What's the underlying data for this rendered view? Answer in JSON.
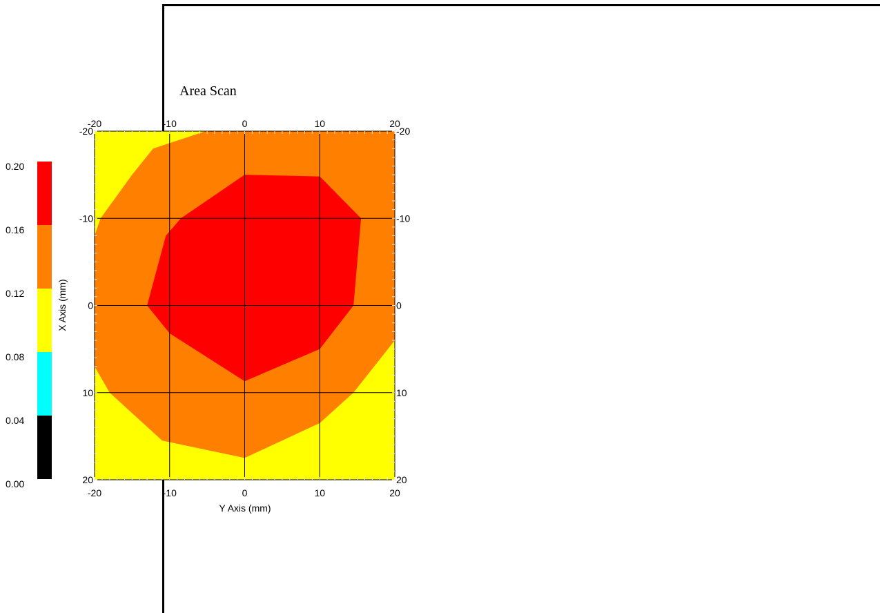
{
  "chart_data": {
    "type": "heatmap",
    "title": "Area Scan",
    "xlabel": "Y Axis (mm)",
    "ylabel": "X Axis (mm)",
    "x_range": [
      -20,
      20
    ],
    "y_range": [
      -20,
      20
    ],
    "x_ticks": [
      "-20",
      "-10",
      "0",
      "10",
      "20"
    ],
    "y_ticks": [
      "-20",
      "-10",
      "0",
      "10",
      "20"
    ],
    "grid": true,
    "legend": {
      "placement": "left",
      "ticks": [
        "0.20",
        "0.16",
        "0.12",
        "0.08",
        "0.04",
        "0.00"
      ],
      "bands": [
        {
          "from": 0.0,
          "to": 0.04,
          "color": "#000000"
        },
        {
          "from": 0.04,
          "to": 0.08,
          "color": "#00ffff"
        },
        {
          "from": 0.08,
          "to": 0.12,
          "color": "#ffff00"
        },
        {
          "from": 0.12,
          "to": 0.16,
          "color": "#ff8000"
        },
        {
          "from": 0.16,
          "to": 0.2,
          "color": "#ff0000"
        }
      ]
    },
    "background_color": "#ffff00",
    "contours": [
      {
        "level": 0.12,
        "color": "#ff8000",
        "points": [
          [
            -5.2,
            -20
          ],
          [
            -12.2,
            -18
          ],
          [
            -15,
            -15
          ],
          [
            -19.2,
            -10
          ],
          [
            -20,
            -8
          ],
          [
            -20,
            7
          ],
          [
            -18,
            10
          ],
          [
            -11,
            15.5
          ],
          [
            0,
            17.5
          ],
          [
            10,
            13.5
          ],
          [
            14.5,
            10
          ],
          [
            20,
            4
          ],
          [
            20,
            -20
          ]
        ]
      },
      {
        "level": 0.16,
        "color": "#ff0000",
        "points": [
          [
            0,
            -15
          ],
          [
            10,
            -14.8
          ],
          [
            15.5,
            -10
          ],
          [
            14.5,
            0
          ],
          [
            10,
            5
          ],
          [
            0,
            8.7
          ],
          [
            -10,
            3.2
          ],
          [
            -13,
            0
          ],
          [
            -10.5,
            -8
          ],
          [
            -8.5,
            -10
          ]
        ]
      }
    ]
  }
}
